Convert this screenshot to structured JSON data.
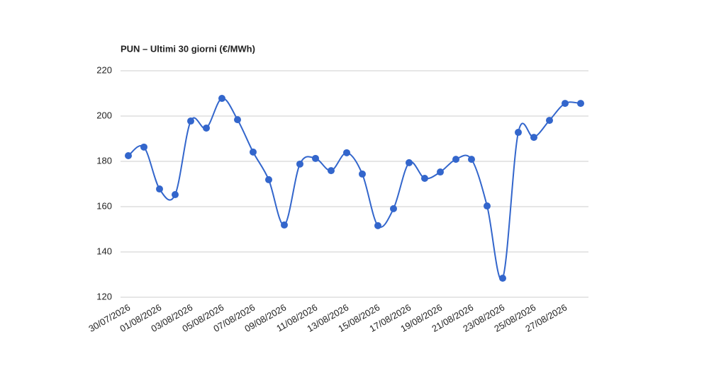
{
  "chart_data": {
    "type": "line",
    "title": "PUN – Ultimi 30 giorni (€/MWh)",
    "categories": [
      "30/07/2026",
      null,
      "01/08/2026",
      null,
      "03/08/2026",
      null,
      "05/08/2026",
      null,
      "07/08/2026",
      null,
      "09/08/2026",
      null,
      "11/08/2026",
      null,
      "13/08/2026",
      null,
      "15/08/2026",
      null,
      "17/08/2026",
      null,
      "19/08/2026",
      null,
      "21/08/2026",
      null,
      "23/08/2026",
      null,
      "25/08/2026",
      null,
      "27/08/2026",
      null
    ],
    "values": [
      182.5,
      186.3,
      167.8,
      165.3,
      197.8,
      194.7,
      207.8,
      198.4,
      184.1,
      171.9,
      151.9,
      178.8,
      181.3,
      175.9,
      183.8,
      174.4,
      151.6,
      159.1,
      179.4,
      172.5,
      175.3,
      180.9,
      180.9,
      160.3,
      128.4,
      192.8,
      190.6,
      198.1,
      205.6,
      205.6
    ],
    "color": "#3366cc",
    "smooth": true,
    "ylim": [
      120,
      220
    ],
    "yticks": [
      120,
      140,
      160,
      180,
      200,
      220
    ],
    "grid": true
  }
}
